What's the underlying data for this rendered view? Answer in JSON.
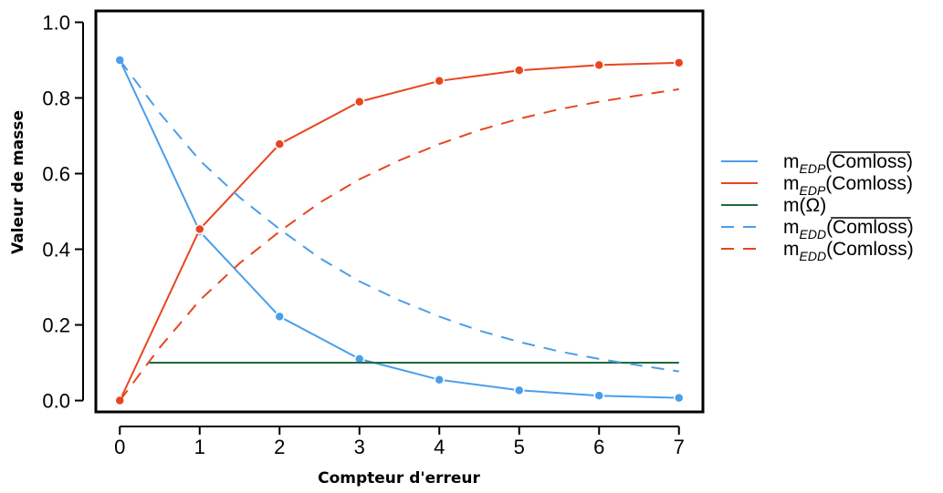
{
  "chart_data": {
    "type": "line",
    "title": "",
    "xlabel": "Compteur d'erreur",
    "ylabel": "Valeur de masse",
    "xlim": [
      -0.3,
      7.3
    ],
    "ylim": [
      -0.03,
      1.03
    ],
    "xticks": [
      0,
      1,
      2,
      3,
      4,
      5,
      6,
      7
    ],
    "xtick_labels": [
      "0",
      "1",
      "2",
      "3",
      "4",
      "5",
      "6",
      "7"
    ],
    "yticks": [
      0.0,
      0.2,
      0.4,
      0.6,
      0.8,
      1.0
    ],
    "ytick_labels": [
      "0.0",
      "0.2",
      "0.4",
      "0.6",
      "0.8",
      "1.0"
    ],
    "grid": false,
    "legend_position": "right",
    "colors": {
      "blue": "#4a9eea",
      "red": "#e8451f",
      "green": "#1e6b3a"
    },
    "series": [
      {
        "name": "m EDP (Comloss, overlined)",
        "legend_label": {
          "base": "m",
          "sub": "EDP",
          "arg": "(Comloss)",
          "overline": true
        },
        "style": "solid",
        "color": "#4a9eea",
        "markers": true,
        "x": [
          0,
          1,
          2,
          3,
          4,
          5,
          6,
          7
        ],
        "y": [
          0.9,
          0.447,
          0.222,
          0.11,
          0.055,
          0.027,
          0.013,
          0.007
        ]
      },
      {
        "name": "m EDP (Comloss)",
        "legend_label": {
          "base": "m",
          "sub": "EDP",
          "arg": "(Comloss)",
          "overline": false
        },
        "style": "solid",
        "color": "#e8451f",
        "markers": true,
        "x": [
          0,
          1,
          2,
          3,
          4,
          5,
          6,
          7
        ],
        "y": [
          0.0,
          0.453,
          0.678,
          0.79,
          0.845,
          0.873,
          0.887,
          0.893
        ]
      },
      {
        "name": "m(Ω)",
        "legend_label": {
          "base": "m",
          "sub": "",
          "arg": "(Ω)",
          "overline": false
        },
        "style": "solid",
        "color": "#1e6b3a",
        "markers": false,
        "x": [
          0.35,
          7
        ],
        "y": [
          0.1,
          0.1
        ]
      },
      {
        "name": "m EDD (Comloss, overlined)",
        "legend_label": {
          "base": "m",
          "sub": "EDD",
          "arg": "(Comloss)",
          "overline": true
        },
        "style": "dashed",
        "color": "#4a9eea",
        "markers": false,
        "x": [
          0,
          0.5,
          1,
          1.5,
          2,
          2.5,
          3,
          3.5,
          4,
          4.5,
          5,
          5.5,
          6,
          6.5,
          7
        ],
        "y": [
          0.9,
          0.76,
          0.635,
          0.537,
          0.453,
          0.377,
          0.315,
          0.265,
          0.222,
          0.185,
          0.155,
          0.13,
          0.11,
          0.093,
          0.077
        ]
      },
      {
        "name": "m EDD (Comloss)",
        "legend_label": {
          "base": "m",
          "sub": "EDD",
          "arg": "(Comloss)",
          "overline": false
        },
        "style": "dashed",
        "color": "#e8451f",
        "markers": false,
        "x": [
          0,
          0.5,
          1,
          1.5,
          2,
          2.5,
          3,
          3.5,
          4,
          4.5,
          5,
          5.5,
          6,
          6.5,
          7
        ],
        "y": [
          0.0,
          0.14,
          0.265,
          0.363,
          0.447,
          0.523,
          0.585,
          0.635,
          0.678,
          0.715,
          0.745,
          0.77,
          0.79,
          0.807,
          0.823
        ]
      }
    ]
  }
}
